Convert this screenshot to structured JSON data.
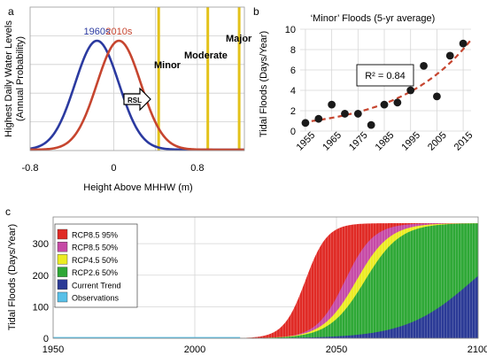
{
  "chart_data": [
    {
      "panel": "a",
      "type": "line",
      "ylabel": "Highest Daily Water Levels (Annual Probability)",
      "xlabel": "Height Above MHHW (m)",
      "xlim": [
        -0.8,
        1.25
      ],
      "xticks": [
        "-0.8",
        "0",
        "0.8"
      ],
      "series": [
        {
          "name": "1960s",
          "color": "#2b3aa0",
          "mean": -0.16,
          "sd": 0.21
        },
        {
          "name": "2010s",
          "color": "#c6452f",
          "mean": 0.05,
          "sd": 0.21
        }
      ],
      "thresholds": [
        {
          "name": "Minor",
          "x": 0.43
        },
        {
          "name": "Moderate",
          "x": 0.9
        },
        {
          "name": "Major",
          "x": 1.2
        }
      ],
      "arrow_label": "RSL",
      "threshold_color": "#e3c21a",
      "grid": true
    },
    {
      "panel": "b",
      "type": "scatter",
      "title": "‘Minor’ Floods (5-yr average)",
      "ylabel": "Tidal Floods (Days/Year)",
      "xlim": [
        1953,
        2018
      ],
      "ylim": [
        0,
        10
      ],
      "xticks": [
        1955,
        1965,
        1975,
        1985,
        1995,
        2005,
        2015
      ],
      "yticks": [
        0,
        2,
        4,
        6,
        8,
        10
      ],
      "points": [
        {
          "x": 1955,
          "y": 0.8
        },
        {
          "x": 1960,
          "y": 1.2
        },
        {
          "x": 1965,
          "y": 2.6
        },
        {
          "x": 1970,
          "y": 1.7
        },
        {
          "x": 1975,
          "y": 1.7
        },
        {
          "x": 1980,
          "y": 0.6
        },
        {
          "x": 1985,
          "y": 2.6
        },
        {
          "x": 1990,
          "y": 2.8
        },
        {
          "x": 1995,
          "y": 4.0
        },
        {
          "x": 2000,
          "y": 6.4
        },
        {
          "x": 2005,
          "y": 3.4
        },
        {
          "x": 2010,
          "y": 7.4
        },
        {
          "x": 2015,
          "y": 8.6
        }
      ],
      "fit": {
        "type": "exponential",
        "a": 0.9,
        "b": 0.0365,
        "x0": 1955,
        "color": "#c6452f",
        "style": "dashed"
      },
      "annotation": "R² = 0.84",
      "grid": true
    },
    {
      "panel": "c",
      "type": "area",
      "ylabel": "Tidal Floods (Days/Year)",
      "xlim": [
        1950,
        2100
      ],
      "ylim": [
        0,
        365
      ],
      "xticks": [
        1950,
        2000,
        2050,
        2100
      ],
      "yticks": [
        0,
        100,
        200,
        300
      ],
      "legend_position": "top-left",
      "series": [
        {
          "name": "RCP8.5 95%",
          "color": "#e02a25",
          "mid": 2039,
          "k": 0.26
        },
        {
          "name": "RCP8.5 50%",
          "color": "#c64aa6",
          "mid": 2053,
          "k": 0.2
        },
        {
          "name": "RCP4.5 50%",
          "color": "#ecec23",
          "mid": 2057,
          "k": 0.17
        },
        {
          "name": "RCP2.6 50%",
          "color": "#2ea836",
          "mid": 2060,
          "k": 0.16
        },
        {
          "name": "Current Trend",
          "color": "#2b3a96",
          "mid": 2098,
          "k": 0.085
        },
        {
          "name": "Observations",
          "color": "#58c0e8",
          "end": 2016
        }
      ],
      "grid": true
    }
  ],
  "panel_labels": {
    "a": "a",
    "b": "b",
    "c": "c"
  }
}
